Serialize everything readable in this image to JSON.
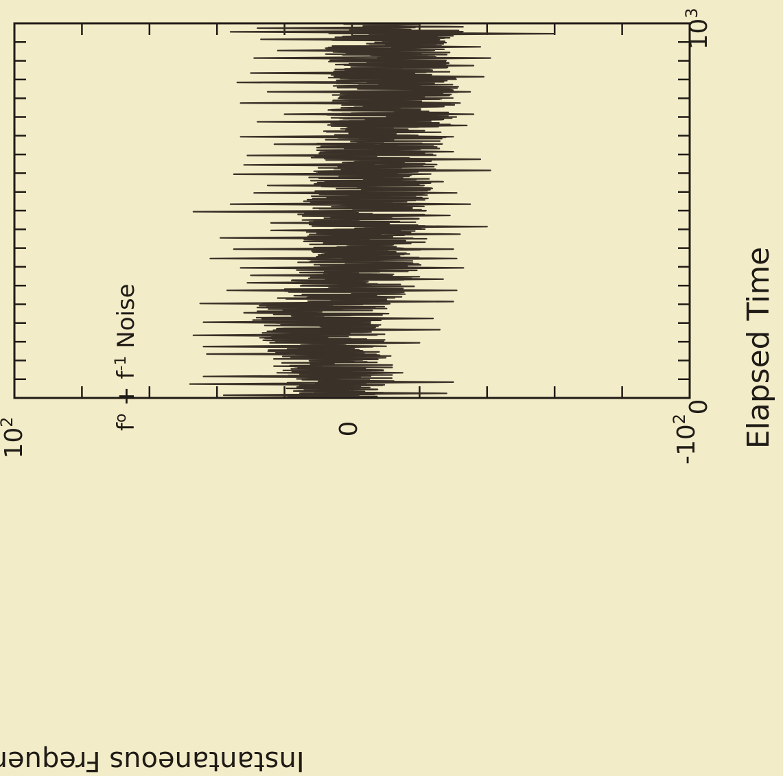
{
  "chart_data": {
    "type": "line",
    "title": "",
    "annotation_base": "f",
    "annotation_exp1": "o",
    "annotation_mid": " + f",
    "annotation_exp2": "-1",
    "annotation_tail": " Noise",
    "xlabel": "Elapsed Time",
    "ylabel": "Instantaneous Frequency (y)",
    "x_tick_labels": [
      {
        "base": "0",
        "exp": ""
      },
      {
        "base": "10",
        "exp": "3"
      }
    ],
    "y_tick_labels": [
      {
        "base": "10",
        "exp": "2"
      },
      {
        "base": "0",
        "exp": ""
      },
      {
        "base": "-10",
        "exp": "2"
      }
    ],
    "xlim": [
      0,
      1000
    ],
    "ylim": [
      -100,
      100
    ],
    "orientation": "rotated 90 degrees",
    "series": [
      {
        "color": "#3a3128",
        "envelope_x": [
          0,
          100,
          200,
          250,
          300,
          400,
          450,
          500,
          600,
          700,
          800,
          900,
          1000
        ],
        "envelope_center": [
          3,
          6,
          10,
          8,
          0,
          -3,
          -5,
          -2,
          -6,
          -9,
          -13,
          -10,
          -14
        ],
        "envelope_halfwidth": [
          16,
          18,
          20,
          20,
          20,
          18,
          19,
          20,
          19,
          20,
          20,
          19,
          20
        ],
        "peaks_x": [
          10,
          40,
          60,
          120,
          140,
          170,
          205,
          230,
          255,
          290,
          310,
          330,
          350,
          375,
          400,
          430,
          450,
          470,
          500,
          520,
          550,
          570,
          600,
          625,
          650,
          680,
          700,
          740,
          760,
          790,
          820,
          845,
          870,
          910,
          930,
          960,
          980,
          990
        ],
        "peaks_y": [
          38,
          48,
          44,
          43,
          44,
          47,
          44,
          32,
          45,
          37,
          31,
          30,
          33,
          42,
          35,
          39,
          24,
          24,
          47,
          36,
          29,
          25,
          35,
          32,
          31,
          23,
          33,
          28,
          20,
          33,
          25,
          34,
          30,
          29,
          22,
          27,
          36,
          28
        ],
        "troughs_x": [
          15,
          45,
          70,
          110,
          150,
          185,
          215,
          260,
          290,
          320,
          350,
          375,
          400,
          440,
          460,
          490,
          520,
          550,
          580,
          610,
          640,
          660,
          700,
          730,
          760,
          790,
          820,
          860,
          890,
          910,
          940,
          975
        ],
        "troughs_y": [
          -28,
          -30,
          -15,
          -10,
          -20,
          -26,
          -24,
          -30,
          -31,
          -27,
          -33,
          -31,
          -30,
          -32,
          -40,
          -29,
          -35,
          -31,
          -27,
          -41,
          -38,
          -30,
          -30,
          -34,
          -36,
          -32,
          -35,
          -39,
          -36,
          -41,
          -38,
          -60
        ]
      }
    ]
  }
}
